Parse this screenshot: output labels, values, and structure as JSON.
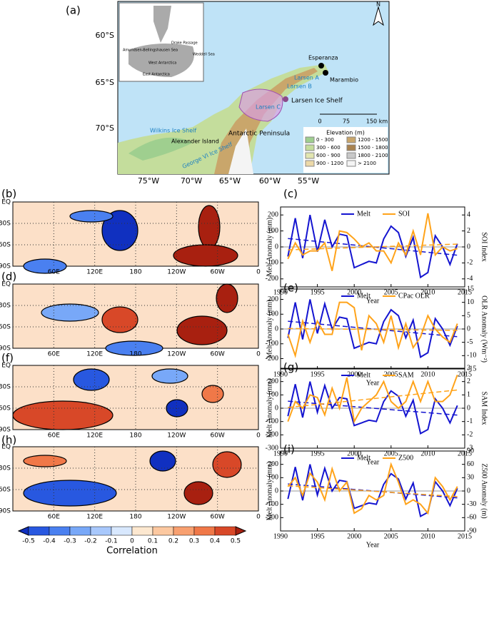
{
  "panel_labels": [
    "(a)",
    "(b)",
    "(c)",
    "(d)",
    "(e)",
    "(f)",
    "(g)",
    "(h)",
    "(i)"
  ],
  "map_a": {
    "lat_labels": [
      "60°S",
      "65°S",
      "70°S"
    ],
    "lon_labels": [
      "75°W",
      "70°W",
      "65°W",
      "60°W",
      "55°W"
    ],
    "north": "N",
    "places": [
      "Esperanza",
      "Marambio",
      "Larsen A",
      "Larsen B",
      "Larsen Ice Shelf",
      "Larsen C",
      "Wilkins Ice Shelf",
      "Alexander Island",
      "George VI Ice Shelf",
      "Antarctic Peninsula"
    ],
    "inset_labels": [
      "Drake Passage",
      "Amundsen-Bellingshausen Sea",
      "Weddell Sea",
      "West Antarctica",
      "East Antarctica"
    ],
    "scale_labels": [
      "0",
      "75",
      "150 km"
    ],
    "legend": {
      "title": "Elevation (m)",
      "entries": [
        {
          "label": "0 - 300",
          "color": "#9fcf8f"
        },
        {
          "label": "1200 - 1500",
          "color": "#c9a66b"
        },
        {
          "label": "300 - 600",
          "color": "#c4dd9c"
        },
        {
          "label": "1500 - 1800",
          "color": "#a8824f"
        },
        {
          "label": "600 - 900",
          "color": "#e2e6b0"
        },
        {
          "label": "1800 - 2100",
          "color": "#c8c8c8"
        },
        {
          "label": "900 - 1200",
          "color": "#ecd9a8"
        },
        {
          "label": "> 2100",
          "color": "#f4f4f4"
        }
      ]
    }
  },
  "correlation_maps": {
    "lat_labels": [
      "EQ",
      "30S",
      "60S",
      "90S"
    ],
    "lon_labels": [
      "60E",
      "120E",
      "180",
      "120W",
      "60W",
      "0"
    ]
  },
  "colorbar": {
    "label": "Correlation",
    "ticks": [
      -0.5,
      -0.4,
      -0.3,
      -0.2,
      -0.1,
      0,
      0.1,
      0.2,
      0.3,
      0.4,
      0.5
    ],
    "colors": [
      "#1030c0",
      "#2858e0",
      "#4a80f0",
      "#78a8f8",
      "#a8c8fc",
      "#d8e8fe",
      "#fde8d0",
      "#fcc8a0",
      "#f8a070",
      "#f07848",
      "#d84828",
      "#a82010"
    ]
  },
  "chart_data": [
    {
      "type": "line",
      "legend": "top-center",
      "trend_lines": true,
      "zero_line": true,
      "x": [
        1991,
        1992,
        1993,
        1994,
        1995,
        1996,
        1997,
        1998,
        1999,
        2000,
        2001,
        2002,
        2003,
        2004,
        2005,
        2006,
        2007,
        2008,
        2009,
        2010,
        2011,
        2012,
        2013,
        2014
      ],
      "series": [
        {
          "name": "Melt",
          "color": "#1414d0",
          "values": [
            -60,
            180,
            -70,
            200,
            -30,
            170,
            0,
            80,
            70,
            -130,
            -110,
            -90,
            -100,
            50,
            130,
            90,
            -60,
            60,
            -190,
            -160,
            70,
            0,
            -110,
            20
          ]
        },
        {
          "name": "SOI",
          "color": "#ffa31a",
          "axis": "y2",
          "values": [
            -1.5,
            0.5,
            -1,
            -0.5,
            -0.5,
            0.5,
            -3,
            2,
            1.8,
            1,
            0,
            0.5,
            -0.5,
            -0.5,
            -2,
            0.5,
            -1,
            2,
            -1,
            4.2,
            -1,
            0,
            -0.5,
            -0.2
          ]
        }
      ],
      "xlim": [
        1990,
        2015
      ],
      "xticks": [
        1990,
        1995,
        2000,
        2005,
        2010,
        2015
      ],
      "ylim": [
        -250,
        250
      ],
      "yticks": [
        -200,
        -100,
        0,
        100,
        200
      ],
      "y2lim": [
        -5,
        5
      ],
      "y2ticks": [
        -4,
        -2,
        0,
        2,
        4
      ],
      "xlabel": "Year",
      "ylabel": "Melt Anomaly (mm)",
      "y2label": "SOI Index"
    },
    {
      "type": "line",
      "legend": "top-center",
      "trend_lines": true,
      "zero_line": true,
      "x": [
        1991,
        1992,
        1993,
        1994,
        1995,
        1996,
        1997,
        1998,
        1999,
        2000,
        2001,
        2002,
        2003,
        2004,
        2005,
        2006,
        2007,
        2008,
        2009,
        2010,
        2011,
        2012,
        2013,
        2014
      ],
      "series": [
        {
          "name": "Melt",
          "color": "#1414d0",
          "values": [
            -60,
            180,
            -70,
            200,
            -30,
            170,
            0,
            80,
            70,
            -130,
            -110,
            -90,
            -100,
            50,
            130,
            90,
            -60,
            60,
            -190,
            -160,
            70,
            0,
            -110,
            20
          ]
        },
        {
          "name": "CPac OLR",
          "color": "#ffa31a",
          "axis": "y2",
          "values": [
            -2,
            -10,
            3,
            -5,
            3,
            -2,
            -2,
            10,
            10,
            8,
            -8,
            5,
            2,
            -5,
            5,
            -7,
            2,
            -7,
            -3,
            5,
            0,
            -3,
            -5,
            2
          ]
        }
      ],
      "xlim": [
        1990,
        2015
      ],
      "xticks": [
        1990,
        1995,
        2000,
        2005,
        2010,
        2015
      ],
      "ylim": [
        -270,
        270
      ],
      "yticks": [
        -200,
        -100,
        0,
        100,
        200
      ],
      "y2lim": [
        -15,
        15
      ],
      "y2ticks": [
        -15,
        -10,
        -5,
        0,
        5,
        10,
        15
      ],
      "xlabel": "Year",
      "ylabel": "Melt Anomaly (mm)",
      "y2label": "OLR Anomaly (Wm⁻²)"
    },
    {
      "type": "line",
      "legend": "top-center",
      "trend_lines": true,
      "zero_line": true,
      "x": [
        1991,
        1992,
        1993,
        1994,
        1995,
        1996,
        1997,
        1998,
        1999,
        2000,
        2001,
        2002,
        2003,
        2004,
        2005,
        2006,
        2007,
        2008,
        2009,
        2010,
        2011,
        2012,
        2013,
        2014
      ],
      "series": [
        {
          "name": "Melt",
          "color": "#1414d0",
          "values": [
            -60,
            180,
            -70,
            200,
            -30,
            170,
            0,
            80,
            70,
            -130,
            -110,
            -90,
            -100,
            50,
            130,
            90,
            -60,
            60,
            -190,
            -160,
            70,
            0,
            -110,
            20
          ]
        },
        {
          "name": "SAM",
          "color": "#ffa31a",
          "axis": "y2",
          "values": [
            -1,
            0.5,
            0,
            1,
            0.8,
            -0.5,
            1.5,
            0,
            2.3,
            -1,
            0,
            0.5,
            1,
            2,
            0.5,
            0,
            0.5,
            2,
            0.5,
            2,
            0.5,
            0.5,
            1,
            2.5
          ]
        }
      ],
      "xlim": [
        1990,
        2015
      ],
      "xticks": [
        1990,
        1995,
        2000,
        2005,
        2010,
        2015
      ],
      "ylim": [
        -300,
        300
      ],
      "yticks": [
        -300,
        -200,
        -100,
        0,
        100,
        200
      ],
      "y2lim": [
        -3,
        3
      ],
      "y2ticks": [
        -3,
        -2,
        -1,
        0,
        1,
        2,
        3
      ],
      "xlabel": "Year",
      "ylabel": "Melt Anomaly (mm)",
      "y2label": "SAM Index"
    },
    {
      "type": "line",
      "legend": "top-center",
      "trend_lines": true,
      "zero_line": true,
      "x": [
        1991,
        1992,
        1993,
        1994,
        1995,
        1996,
        1997,
        1998,
        1999,
        2000,
        2001,
        2002,
        2003,
        2004,
        2005,
        2006,
        2007,
        2008,
        2009,
        2010,
        2011,
        2012,
        2013,
        2014
      ],
      "series": [
        {
          "name": "Melt",
          "color": "#1414d0",
          "values": [
            -60,
            180,
            -70,
            200,
            -30,
            170,
            0,
            80,
            70,
            -130,
            -110,
            -90,
            -100,
            50,
            130,
            90,
            -60,
            60,
            -190,
            -160,
            70,
            0,
            -110,
            20
          ]
        },
        {
          "name": "Z500",
          "color": "#ffa31a",
          "axis": "y2",
          "values": [
            10,
            30,
            -10,
            40,
            20,
            -20,
            50,
            0,
            20,
            -50,
            -40,
            -10,
            -20,
            -10,
            60,
            20,
            -30,
            -20,
            -30,
            -50,
            30,
            10,
            -20,
            10
          ]
        }
      ],
      "xlim": [
        1990,
        2015
      ],
      "xticks": [
        1990,
        1995,
        2000,
        2005,
        2010,
        2015
      ],
      "ylim": [
        -300,
        300
      ],
      "yticks": [
        -200,
        -100,
        0,
        100,
        200
      ],
      "y2lim": [
        -90,
        90
      ],
      "y2ticks": [
        -90,
        -60,
        -30,
        0,
        30,
        60,
        90
      ],
      "xlabel": "Year",
      "ylabel": "Melt Anomaly (mm)",
      "y2label": "Z500 Anomaly (m)"
    }
  ]
}
